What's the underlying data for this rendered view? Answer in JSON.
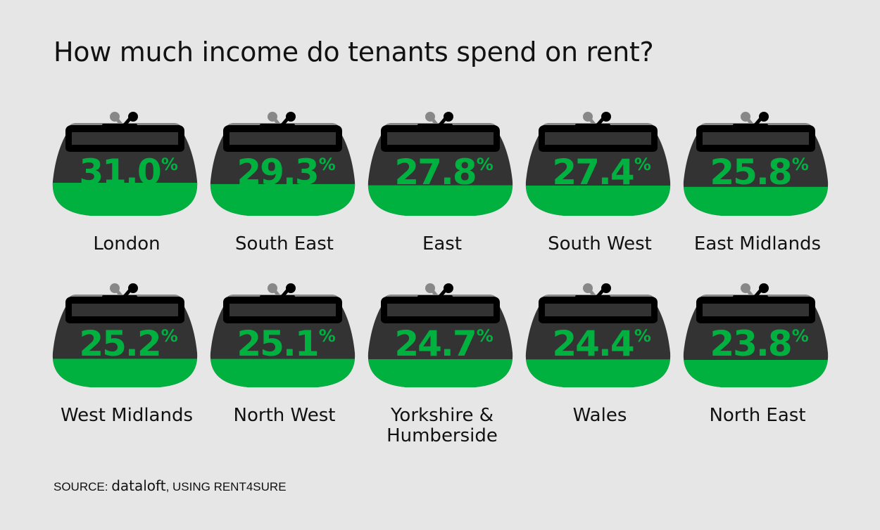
{
  "title": "How much income do tenants spend on rent?",
  "source": {
    "prefix": "SOURCE: ",
    "brand": "dataloft",
    "suffix": ", USING RENT4SURE"
  },
  "colors": {
    "purse_body": "#333333",
    "fill": "#00b140",
    "clasp": "#000000",
    "back_frame": "#888888",
    "background": "#e6e6e6",
    "value_text": "#00b140"
  },
  "icon": "coin-purse-icon",
  "chart_data": {
    "type": "bar",
    "title": "How much income do tenants spend on rent?",
    "unit": "%",
    "categories": [
      "London",
      "South East",
      "East",
      "South West",
      "East Midlands",
      "West Midlands",
      "North West",
      "Yorkshire &\nHumberside",
      "Wales",
      "North East"
    ],
    "values": [
      31.0,
      29.3,
      27.8,
      27.4,
      25.8,
      25.2,
      25.1,
      24.7,
      24.4,
      23.8
    ],
    "labels": [
      "31.0",
      "29.3",
      "27.8",
      "27.4",
      "25.8",
      "25.2",
      "25.1",
      "24.7",
      "24.4",
      "23.8"
    ]
  }
}
